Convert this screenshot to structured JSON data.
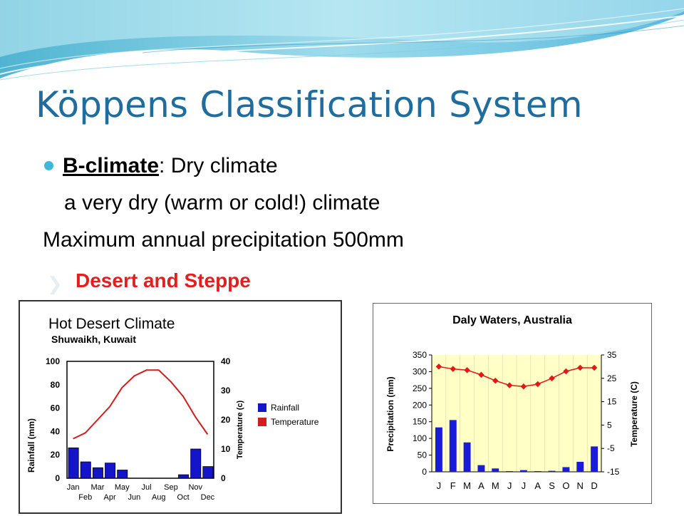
{
  "slide": {
    "title": "Köppens Classification System",
    "bullet_label": "B-climate",
    "bullet_text": ": Dry climate",
    "line2": "a very dry (warm or cold!) climate",
    "line3": "Maximum annual precipitation 500mm",
    "line4": "Desert and Steppe"
  },
  "chart_data": [
    {
      "type": "bar",
      "title": "Hot Desert Climate",
      "subtitle": "Shuwaikh, Kuwait",
      "categories": [
        "Jan",
        "Feb",
        "Mar",
        "Apr",
        "May",
        "Jun",
        "Jul",
        "Aug",
        "Sep",
        "Oct",
        "Nov",
        "Dec"
      ],
      "series": [
        {
          "name": "Rainfall",
          "kind": "bar",
          "axis": "left",
          "color": "#1414c8",
          "values": [
            26,
            14,
            9,
            13,
            7,
            0,
            0,
            0,
            0,
            3,
            25,
            10
          ]
        },
        {
          "name": "Temperature",
          "kind": "line",
          "axis": "right",
          "color": "#d21e1e",
          "values": [
            13.5,
            15.5,
            20,
            24.5,
            31,
            35,
            37,
            37,
            33,
            28,
            21,
            15
          ]
        }
      ],
      "ylabel": "Rainfall (mm)",
      "y2label": "Temperature (c)",
      "ylim": [
        0,
        100
      ],
      "y2lim": [
        0,
        40
      ],
      "yticks": [
        "0",
        "20",
        "40",
        "60",
        "80",
        "100"
      ],
      "y2ticks": [
        "0",
        "10",
        "20",
        "30",
        "40"
      ],
      "legend_position": "right"
    },
    {
      "type": "bar",
      "title": "Daly Waters, Australia",
      "categories": [
        "J",
        "F",
        "M",
        "A",
        "M",
        "J",
        "J",
        "A",
        "S",
        "O",
        "N",
        "D"
      ],
      "series": [
        {
          "name": "Precipitation",
          "kind": "bar",
          "axis": "left",
          "color": "#1a1adb",
          "values": [
            133,
            155,
            88,
            20,
            10,
            2,
            5,
            2,
            3,
            14,
            30,
            76
          ]
        },
        {
          "name": "Temperature",
          "kind": "line",
          "axis": "right",
          "color": "#e01818",
          "values": [
            30,
            29,
            28.5,
            26.5,
            24,
            22,
            21.5,
            22.5,
            25,
            28,
            29.5,
            29.5
          ]
        }
      ],
      "ylabel": "Precipitation (mm)",
      "y2label": "Temperature (C)",
      "ylim": [
        0,
        350
      ],
      "y2lim": [
        -15,
        35
      ],
      "yticks": [
        "0",
        "50",
        "100",
        "150",
        "200",
        "250",
        "300",
        "350"
      ],
      "y2ticks": [
        "-15",
        "-5",
        "5",
        "15",
        "25",
        "35"
      ],
      "plot_background": "#ffffc6"
    }
  ]
}
